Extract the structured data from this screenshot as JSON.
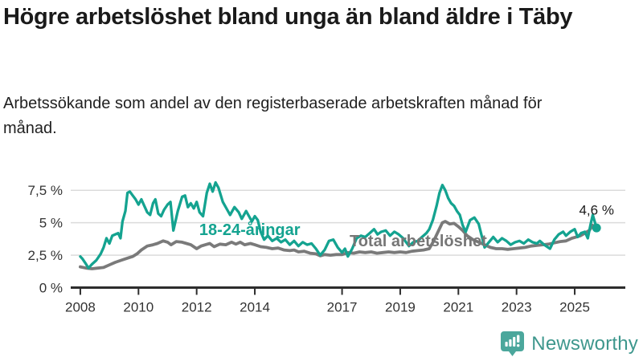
{
  "header": {
    "title": "Högre arbetslöshet bland unga än bland äldre i Täby",
    "subtitle": "Arbetssökande som andel av den registerbaserade arbetskraften månad för månad."
  },
  "branding": {
    "logo_text": "Newsworthy",
    "logo_icon": "newsworthy-speech-bubble-bar-chart-icon",
    "logo_icon_color": "#4ba79c",
    "logo_text_color": "#3e978d"
  },
  "colors": {
    "young_line": "#14a390",
    "total_line": "#7a7a7a",
    "grid": "#dbdbdb",
    "axis": "#2d2d2d",
    "annotation_text": "#1a1a1a"
  },
  "chart_data": {
    "type": "line",
    "unit": "%",
    "x_axis": "år (månadsdata)",
    "xlim": [
      2007.67,
      2026.74
    ],
    "ylim": [
      0,
      8.81
    ],
    "grid": "horizontal",
    "legend_position": "inline-labels",
    "xticks": [
      {
        "v": 2008,
        "label": "2008"
      },
      {
        "v": 2010,
        "label": "2010"
      },
      {
        "v": 2012,
        "label": "2012"
      },
      {
        "v": 2014,
        "label": "2014"
      },
      {
        "v": 2017,
        "label": "2017"
      },
      {
        "v": 2019,
        "label": "2019"
      },
      {
        "v": 2021,
        "label": "2021"
      },
      {
        "v": 2023,
        "label": "2023"
      },
      {
        "v": 2025,
        "label": "2025"
      }
    ],
    "yticks": [
      {
        "v": 0,
        "label": "0 %"
      },
      {
        "v": 2.5,
        "label": "2,5 %"
      },
      {
        "v": 5,
        "label": "5 %"
      },
      {
        "v": 7.5,
        "label": "7,5 %"
      }
    ],
    "series": [
      {
        "name": "Total arbetslöshet",
        "color": "#7a7a7a",
        "stroke_width": 3.8,
        "label_color": "#767676",
        "label_pos": {
          "x": 2017.26,
          "y": 3.19
        },
        "points": [
          [
            2008.0,
            1.6
          ],
          [
            2008.2,
            1.5
          ],
          [
            2008.4,
            1.45
          ],
          [
            2008.6,
            1.5
          ],
          [
            2008.8,
            1.55
          ],
          [
            2009.0,
            1.75
          ],
          [
            2009.2,
            1.95
          ],
          [
            2009.4,
            2.1
          ],
          [
            2009.6,
            2.25
          ],
          [
            2009.8,
            2.4
          ],
          [
            2009.95,
            2.6
          ],
          [
            2010.1,
            2.9
          ],
          [
            2010.3,
            3.2
          ],
          [
            2010.5,
            3.3
          ],
          [
            2010.65,
            3.4
          ],
          [
            2010.85,
            3.6
          ],
          [
            2011.0,
            3.5
          ],
          [
            2011.12,
            3.3
          ],
          [
            2011.3,
            3.55
          ],
          [
            2011.5,
            3.5
          ],
          [
            2011.65,
            3.4
          ],
          [
            2011.8,
            3.3
          ],
          [
            2012.0,
            3.0
          ],
          [
            2012.15,
            3.2
          ],
          [
            2012.3,
            3.3
          ],
          [
            2012.45,
            3.4
          ],
          [
            2012.6,
            3.15
          ],
          [
            2012.8,
            3.35
          ],
          [
            2013.0,
            3.3
          ],
          [
            2013.2,
            3.5
          ],
          [
            2013.35,
            3.35
          ],
          [
            2013.5,
            3.5
          ],
          [
            2013.65,
            3.3
          ],
          [
            2013.85,
            3.4
          ],
          [
            2014.0,
            3.3
          ],
          [
            2014.2,
            3.15
          ],
          [
            2014.4,
            3.1
          ],
          [
            2014.6,
            3.0
          ],
          [
            2014.8,
            3.05
          ],
          [
            2015.0,
            2.9
          ],
          [
            2015.2,
            2.85
          ],
          [
            2015.35,
            2.9
          ],
          [
            2015.5,
            2.75
          ],
          [
            2015.7,
            2.8
          ],
          [
            2015.9,
            2.65
          ],
          [
            2016.1,
            2.6
          ],
          [
            2016.25,
            2.45
          ],
          [
            2016.4,
            2.55
          ],
          [
            2016.6,
            2.5
          ],
          [
            2016.8,
            2.55
          ],
          [
            2017.0,
            2.55
          ],
          [
            2017.2,
            2.7
          ],
          [
            2017.4,
            2.65
          ],
          [
            2017.6,
            2.75
          ],
          [
            2017.8,
            2.7
          ],
          [
            2018.0,
            2.75
          ],
          [
            2018.2,
            2.65
          ],
          [
            2018.4,
            2.7
          ],
          [
            2018.6,
            2.75
          ],
          [
            2018.8,
            2.7
          ],
          [
            2019.0,
            2.75
          ],
          [
            2019.2,
            2.7
          ],
          [
            2019.4,
            2.8
          ],
          [
            2019.6,
            2.85
          ],
          [
            2019.8,
            2.9
          ],
          [
            2020.0,
            3.0
          ],
          [
            2020.15,
            3.6
          ],
          [
            2020.3,
            4.3
          ],
          [
            2020.45,
            5.0
          ],
          [
            2020.55,
            5.1
          ],
          [
            2020.7,
            4.9
          ],
          [
            2020.85,
            4.95
          ],
          [
            2021.0,
            4.7
          ],
          [
            2021.15,
            4.4
          ],
          [
            2021.3,
            4.0
          ],
          [
            2021.5,
            3.7
          ],
          [
            2021.7,
            3.5
          ],
          [
            2021.9,
            3.3
          ],
          [
            2022.1,
            3.1
          ],
          [
            2022.3,
            3.0
          ],
          [
            2022.5,
            3.0
          ],
          [
            2022.7,
            2.95
          ],
          [
            2022.9,
            3.0
          ],
          [
            2023.1,
            3.05
          ],
          [
            2023.3,
            3.1
          ],
          [
            2023.5,
            3.2
          ],
          [
            2023.7,
            3.25
          ],
          [
            2023.9,
            3.3
          ],
          [
            2024.1,
            3.35
          ],
          [
            2024.3,
            3.45
          ],
          [
            2024.5,
            3.55
          ],
          [
            2024.7,
            3.6
          ],
          [
            2024.9,
            3.8
          ],
          [
            2025.05,
            3.9
          ],
          [
            2025.2,
            4.0
          ],
          [
            2025.35,
            4.2
          ],
          [
            2025.5,
            4.4
          ],
          [
            2025.62,
            4.8
          ],
          [
            2025.75,
            4.5
          ]
        ]
      },
      {
        "name": "18-24-åringar",
        "color": "#14a390",
        "stroke_width": 3.3,
        "label_color": "#14a390",
        "label_pos": {
          "x": 2012.09,
          "y": 4.05
        },
        "points": [
          [
            2008.0,
            2.4
          ],
          [
            2008.08,
            2.2
          ],
          [
            2008.17,
            1.9
          ],
          [
            2008.28,
            1.5
          ],
          [
            2008.4,
            1.8
          ],
          [
            2008.55,
            2.1
          ],
          [
            2008.7,
            2.6
          ],
          [
            2008.8,
            3.1
          ],
          [
            2008.9,
            3.8
          ],
          [
            2009.0,
            3.4
          ],
          [
            2009.1,
            4.0
          ],
          [
            2009.2,
            4.1
          ],
          [
            2009.3,
            4.2
          ],
          [
            2009.38,
            3.8
          ],
          [
            2009.45,
            5.1
          ],
          [
            2009.55,
            5.9
          ],
          [
            2009.62,
            7.3
          ],
          [
            2009.7,
            7.4
          ],
          [
            2009.8,
            7.1
          ],
          [
            2009.9,
            6.8
          ],
          [
            2010.0,
            6.4
          ],
          [
            2010.1,
            6.8
          ],
          [
            2010.2,
            6.3
          ],
          [
            2010.3,
            5.8
          ],
          [
            2010.4,
            5.6
          ],
          [
            2010.5,
            6.5
          ],
          [
            2010.58,
            6.8
          ],
          [
            2010.68,
            5.7
          ],
          [
            2010.78,
            5.5
          ],
          [
            2010.88,
            6.0
          ],
          [
            2011.0,
            6.4
          ],
          [
            2011.1,
            6.6
          ],
          [
            2011.2,
            4.4
          ],
          [
            2011.35,
            5.9
          ],
          [
            2011.5,
            7.0
          ],
          [
            2011.6,
            7.1
          ],
          [
            2011.7,
            6.2
          ],
          [
            2011.8,
            6.5
          ],
          [
            2011.9,
            6.1
          ],
          [
            2012.0,
            6.6
          ],
          [
            2012.1,
            5.8
          ],
          [
            2012.22,
            5.5
          ],
          [
            2012.35,
            7.3
          ],
          [
            2012.45,
            8.0
          ],
          [
            2012.55,
            7.4
          ],
          [
            2012.65,
            8.1
          ],
          [
            2012.75,
            7.7
          ],
          [
            2012.9,
            6.6
          ],
          [
            2013.05,
            6.0
          ],
          [
            2013.15,
            5.6
          ],
          [
            2013.3,
            6.2
          ],
          [
            2013.45,
            5.8
          ],
          [
            2013.55,
            5.3
          ],
          [
            2013.7,
            5.9
          ],
          [
            2013.8,
            5.5
          ],
          [
            2013.9,
            5.1
          ],
          [
            2014.0,
            5.5
          ],
          [
            2014.1,
            5.2
          ],
          [
            2014.2,
            4.3
          ],
          [
            2014.32,
            3.7
          ],
          [
            2014.45,
            4.0
          ],
          [
            2014.6,
            3.6
          ],
          [
            2014.75,
            3.8
          ],
          [
            2014.9,
            3.5
          ],
          [
            2015.05,
            3.7
          ],
          [
            2015.2,
            3.3
          ],
          [
            2015.35,
            3.6
          ],
          [
            2015.5,
            3.2
          ],
          [
            2015.65,
            3.5
          ],
          [
            2015.8,
            3.3
          ],
          [
            2015.95,
            3.4
          ],
          [
            2016.1,
            3.0
          ],
          [
            2016.25,
            2.5
          ],
          [
            2016.4,
            2.9
          ],
          [
            2016.55,
            3.6
          ],
          [
            2016.7,
            3.7
          ],
          [
            2016.85,
            3.1
          ],
          [
            2017.0,
            2.7
          ],
          [
            2017.1,
            3.0
          ],
          [
            2017.2,
            2.4
          ],
          [
            2017.35,
            3.0
          ],
          [
            2017.5,
            3.8
          ],
          [
            2017.65,
            4.0
          ],
          [
            2017.8,
            3.9
          ],
          [
            2017.95,
            4.2
          ],
          [
            2018.1,
            4.5
          ],
          [
            2018.22,
            4.1
          ],
          [
            2018.35,
            4.3
          ],
          [
            2018.5,
            4.4
          ],
          [
            2018.65,
            4.0
          ],
          [
            2018.8,
            4.3
          ],
          [
            2018.95,
            4.1
          ],
          [
            2019.1,
            3.8
          ],
          [
            2019.3,
            3.2
          ],
          [
            2019.45,
            3.5
          ],
          [
            2019.6,
            3.6
          ],
          [
            2019.75,
            3.9
          ],
          [
            2019.9,
            4.2
          ],
          [
            2020.0,
            4.5
          ],
          [
            2020.12,
            5.2
          ],
          [
            2020.25,
            6.3
          ],
          [
            2020.35,
            7.3
          ],
          [
            2020.45,
            7.9
          ],
          [
            2020.55,
            7.5
          ],
          [
            2020.65,
            6.9
          ],
          [
            2020.75,
            6.5
          ],
          [
            2020.85,
            6.3
          ],
          [
            2020.95,
            5.9
          ],
          [
            2021.05,
            5.6
          ],
          [
            2021.15,
            4.8
          ],
          [
            2021.25,
            4.3
          ],
          [
            2021.4,
            5.2
          ],
          [
            2021.55,
            5.4
          ],
          [
            2021.7,
            4.9
          ],
          [
            2021.9,
            3.1
          ],
          [
            2022.05,
            3.5
          ],
          [
            2022.2,
            3.9
          ],
          [
            2022.35,
            3.5
          ],
          [
            2022.5,
            3.8
          ],
          [
            2022.65,
            3.6
          ],
          [
            2022.8,
            3.3
          ],
          [
            2022.95,
            3.5
          ],
          [
            2023.1,
            3.6
          ],
          [
            2023.25,
            3.4
          ],
          [
            2023.4,
            3.7
          ],
          [
            2023.55,
            3.5
          ],
          [
            2023.7,
            3.4
          ],
          [
            2023.8,
            3.6
          ],
          [
            2023.95,
            3.3
          ],
          [
            2024.15,
            3.0
          ],
          [
            2024.3,
            3.7
          ],
          [
            2024.45,
            4.1
          ],
          [
            2024.6,
            4.3
          ],
          [
            2024.7,
            4.0
          ],
          [
            2024.85,
            4.3
          ],
          [
            2025.0,
            4.5
          ],
          [
            2025.1,
            3.9
          ],
          [
            2025.22,
            4.2
          ],
          [
            2025.35,
            4.3
          ],
          [
            2025.45,
            3.8
          ],
          [
            2025.55,
            4.9
          ],
          [
            2025.62,
            5.6
          ],
          [
            2025.75,
            4.6
          ]
        ]
      }
    ],
    "annotation": {
      "text": "4,6 %",
      "x": 2025.15,
      "y": 5.62
    },
    "end_marker": {
      "series": "18-24-åringar",
      "x": 2025.75,
      "y": 4.6,
      "radius": 5.5
    }
  }
}
